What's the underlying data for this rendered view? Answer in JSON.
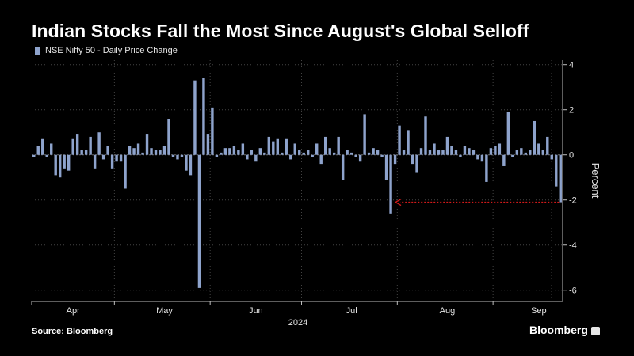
{
  "title": "Indian Stocks Fall the Most Since August's Global Selloff",
  "source": "Source: Bloomberg",
  "brand": "Bloomberg",
  "colors": {
    "bar": "#8ea3cc",
    "arrow": "#d11a1a",
    "grid": "#444444",
    "background": "#000000"
  },
  "chart_data": {
    "type": "bar",
    "series": [
      {
        "name": "NSE Nifty 50 - Daily Price Change",
        "values": [
          -0.1,
          0.4,
          0.7,
          -0.1,
          0.5,
          -0.9,
          -1.0,
          -0.6,
          -0.7,
          0.7,
          0.9,
          0.2,
          0.2,
          0.8,
          -0.6,
          1.0,
          -0.2,
          0.4,
          -0.6,
          -0.3,
          -0.3,
          -1.5,
          0.4,
          0.3,
          0.5,
          0.1,
          0.9,
          0.3,
          0.2,
          0.2,
          0.4,
          1.6,
          -0.1,
          -0.2,
          -0.1,
          -0.7,
          -0.9,
          3.3,
          -5.9,
          3.4,
          0.9,
          2.1,
          -0.1,
          0.1,
          0.3,
          0.3,
          0.4,
          0.2,
          0.5,
          -0.2,
          0.2,
          -0.3,
          0.3,
          0.1,
          0.8,
          0.6,
          0.7,
          0.1,
          0.7,
          -0.2,
          0.5,
          0.2,
          0.1,
          0.2,
          -0.1,
          0.5,
          -0.4,
          0.8,
          0.3,
          0.1,
          0.8,
          -1.1,
          0.2,
          0.1,
          -0.1,
          -0.3,
          1.8,
          0.1,
          0.3,
          0.2,
          -0.1,
          -1.1,
          -2.6,
          -0.4,
          1.3,
          0.2,
          1.1,
          -0.4,
          -0.8,
          0.3,
          1.7,
          0.2,
          0.5,
          0.2,
          0.2,
          0.8,
          0.4,
          0.2,
          -0.1,
          0.4,
          0.3,
          0.2,
          -0.2,
          -0.3,
          -1.2,
          0.3,
          0.4,
          0.5,
          -0.5,
          1.9,
          -0.1,
          0.2,
          0.3,
          0.1,
          0.2,
          1.5,
          0.5,
          0.2,
          0.8,
          -0.2,
          -1.4,
          -2.1
        ]
      }
    ],
    "ylim": [
      -6.5,
      4.2
    ],
    "yticks": [
      4,
      2,
      0,
      -2,
      -4,
      -6
    ],
    "ylabel": "Percent",
    "xlabel": "",
    "year_label": "2024",
    "month_labels": [
      {
        "label": "Apr",
        "index": 9
      },
      {
        "label": "May",
        "index": 30
      },
      {
        "label": "Jun",
        "index": 51
      },
      {
        "label": "Jul",
        "index": 73
      },
      {
        "label": "Aug",
        "index": 95
      },
      {
        "label": "Sep",
        "index": 116
      }
    ],
    "month_boundaries": [
      0,
      19,
      41,
      62,
      84,
      106
    ],
    "annotation": {
      "type": "arrow",
      "y": -2.1,
      "from_index": 121,
      "to_index": 82
    },
    "grid": true,
    "legend_position": "top-left"
  }
}
